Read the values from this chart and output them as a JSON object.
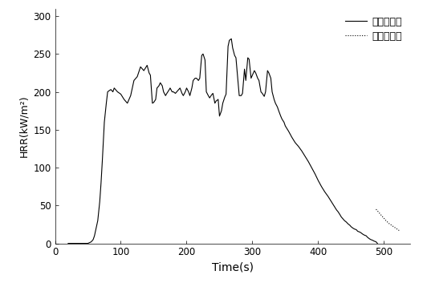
{
  "title": "",
  "xlabel": "Time(s)",
  "ylabel": "HRR(kW/m²)",
  "xlim": [
    0,
    540
  ],
  "ylim": [
    0,
    310
  ],
  "xticks": [
    0,
    100,
    200,
    300,
    400,
    500
  ],
  "yticks": [
    0,
    50,
    100,
    150,
    200,
    250,
    300
  ],
  "legend_entries": [
    "第一次测试",
    "第二次测试"
  ],
  "line1_color": "#000000",
  "line2_color": "#000000",
  "background_color": "#ffffff",
  "line1_x": [
    20,
    30,
    40,
    50,
    55,
    58,
    60,
    62,
    65,
    68,
    70,
    72,
    75,
    78,
    80,
    83,
    85,
    88,
    90,
    95,
    100,
    105,
    110,
    115,
    120,
    125,
    130,
    135,
    140,
    143,
    145,
    148,
    150,
    153,
    155,
    158,
    160,
    163,
    165,
    168,
    170,
    173,
    175,
    178,
    180,
    183,
    185,
    188,
    190,
    193,
    195,
    198,
    200,
    203,
    205,
    208,
    210,
    213,
    215,
    218,
    220,
    223,
    225,
    228,
    230,
    233,
    235,
    238,
    240,
    243,
    245,
    248,
    250,
    253,
    255,
    258,
    260,
    263,
    265,
    268,
    270,
    273,
    275,
    278,
    280,
    283,
    285,
    288,
    290,
    293,
    295,
    298,
    300,
    303,
    305,
    308,
    310,
    313,
    315,
    318,
    320,
    323,
    325,
    328,
    330,
    333,
    335,
    338,
    340,
    343,
    345,
    348,
    350,
    355,
    360,
    365,
    370,
    375,
    380,
    385,
    390,
    395,
    400,
    405,
    410,
    415,
    420,
    425,
    428,
    430,
    433,
    435,
    438,
    440,
    443,
    445,
    448,
    450,
    453,
    455,
    458,
    460,
    463,
    465,
    468,
    470,
    473,
    475,
    478,
    480,
    483,
    485,
    488,
    490
  ],
  "line1_y": [
    0,
    0,
    0,
    0,
    2,
    5,
    10,
    18,
    30,
    55,
    80,
    110,
    160,
    185,
    200,
    202,
    203,
    200,
    205,
    200,
    197,
    190,
    185,
    195,
    215,
    220,
    233,
    228,
    235,
    225,
    222,
    185,
    186,
    190,
    205,
    208,
    212,
    208,
    200,
    195,
    198,
    202,
    205,
    200,
    200,
    198,
    200,
    203,
    205,
    198,
    195,
    200,
    205,
    200,
    195,
    205,
    215,
    218,
    218,
    215,
    218,
    248,
    250,
    242,
    200,
    195,
    192,
    196,
    198,
    185,
    188,
    190,
    168,
    175,
    185,
    193,
    197,
    260,
    268,
    270,
    258,
    248,
    245,
    215,
    195,
    195,
    198,
    230,
    215,
    245,
    243,
    218,
    222,
    228,
    225,
    218,
    215,
    200,
    198,
    194,
    200,
    228,
    225,
    218,
    200,
    190,
    185,
    180,
    175,
    168,
    164,
    160,
    155,
    148,
    140,
    133,
    128,
    122,
    115,
    108,
    100,
    92,
    83,
    75,
    68,
    62,
    55,
    48,
    44,
    42,
    38,
    35,
    32,
    30,
    28,
    26,
    24,
    22,
    20,
    19,
    18,
    16,
    15,
    14,
    12,
    11,
    10,
    8,
    6,
    5,
    4,
    3,
    2,
    0
  ],
  "line2_x": [
    488,
    493,
    498,
    503,
    508,
    513,
    518,
    523
  ],
  "line2_y": [
    45,
    40,
    35,
    30,
    26,
    23,
    20,
    17
  ]
}
